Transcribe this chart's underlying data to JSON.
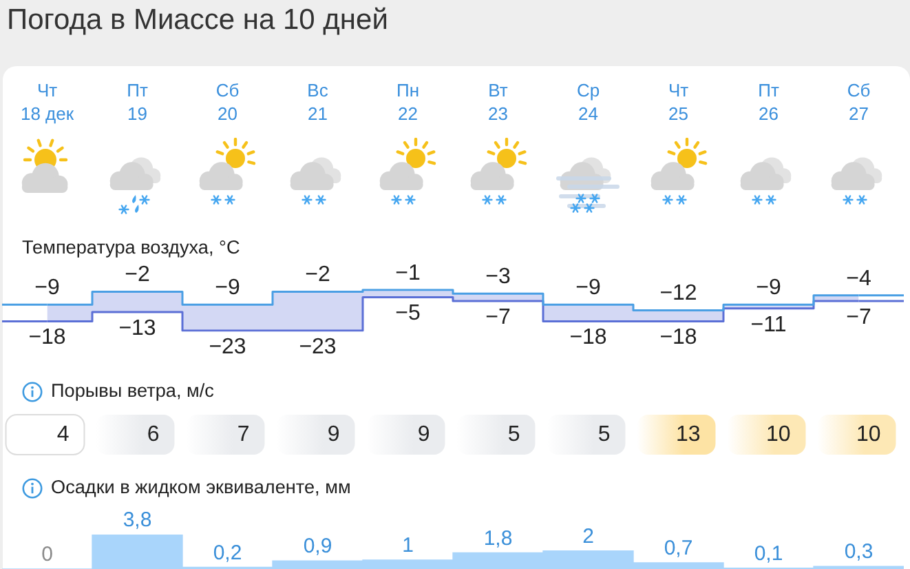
{
  "chart_data": [
    {
      "type": "step",
      "title": "Погода в Миассе на 10 дней",
      "ylabel": "Температура воздуха, °C",
      "categories": [
        "Чт\n18 дек",
        "Пт\n19",
        "Сб\n20",
        "Вс\n21",
        "Пн\n22",
        "Вт\n23",
        "Ср\n24",
        "Чт\n25",
        "Пт\n26",
        "Сб\n27"
      ],
      "series": [
        {
          "color": "#4a9fe4",
          "values": [
            -9,
            -2,
            -9,
            -2,
            -1,
            -3,
            -9,
            -12,
            -9,
            -4
          ]
        },
        {
          "color": "#5b6fd6",
          "values": [
            -18,
            -13,
            -23,
            -23,
            -5,
            -7,
            -18,
            -18,
            -11,
            -7
          ]
        }
      ],
      "data_labels": true,
      "tick_labels": "x"
    },
    {
      "type": "other",
      "ylabel": "Порывы ветра, м/с",
      "values": [
        4,
        6,
        7,
        9,
        9,
        5,
        5,
        13,
        10,
        10
      ],
      "colors": [
        "#ffffff",
        "#eaecef",
        "#eaecef",
        "#eaecef",
        "#eaecef",
        "#eaecef",
        "#eaecef",
        "#fde3a4",
        "#fde8b5",
        "#fde8b5"
      ],
      "data_labels": true
    },
    {
      "type": "bar",
      "ylabel": "Осадки в жидком эквиваленте, мм",
      "categories": [
        null,
        null,
        null,
        null,
        null,
        null,
        null,
        null,
        null,
        null
      ],
      "values": [
        0,
        3.8,
        0.2,
        0.9,
        1,
        1.8,
        2,
        0.7,
        0.1,
        0.3
      ],
      "value_labels": [
        "0",
        "3,8",
        "0,2",
        "0,9",
        "1",
        "1,8",
        "2",
        "0,7",
        "0,1",
        "0,3"
      ],
      "color": "#a9d5fb",
      "tick_labels": false
    }
  ]
}
